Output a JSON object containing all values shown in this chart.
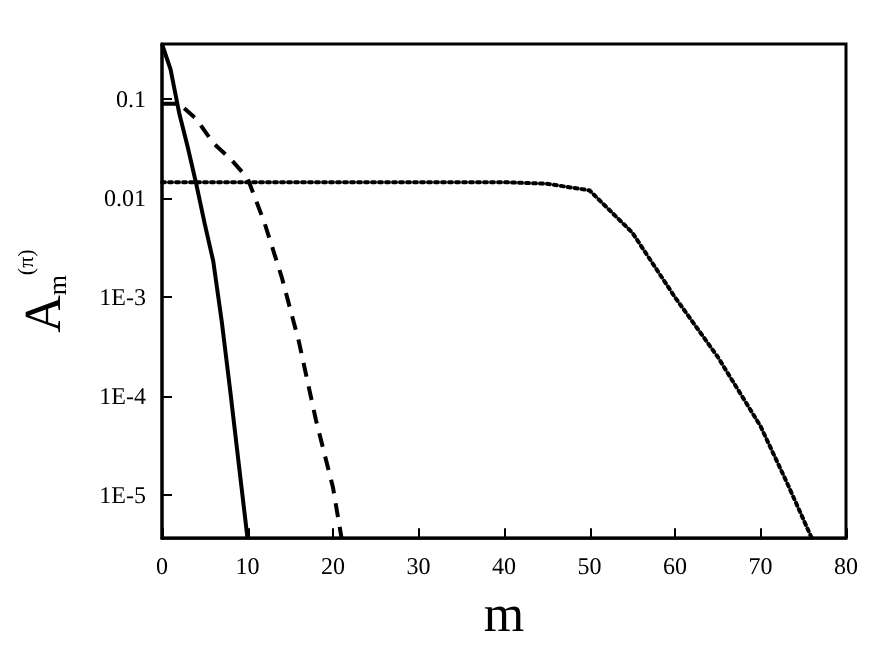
{
  "chart_data": {
    "type": "line",
    "xlabel": "m",
    "ylabel": "A$_{m}$$^{(π)}$",
    "log": "y",
    "grid": false,
    "marker": "none",
    "xlim": [
      0,
      80
    ],
    "xticks": [
      0,
      10,
      20,
      30,
      40,
      50,
      60,
      70,
      80
    ],
    "ylim": [
      3.7e-06,
      0.36
    ],
    "yticks": [
      0.1,
      0.01,
      {
        "value": 0.001,
        "label": "1E-3"
      },
      {
        "value": 0.0001,
        "label": "1E-4"
      },
      {
        "value": 1e-05,
        "label": "1E-5"
      }
    ],
    "series": [
      {
        "color": "#000000",
        "line_style": "solid",
        "x": [
          0,
          1,
          2,
          3,
          4,
          5,
          6,
          7,
          8,
          9,
          10
        ],
        "values": [
          0.36,
          0.2,
          0.073,
          0.033,
          0.014,
          0.0055,
          0.0023,
          0.00056,
          0.00011,
          2e-05,
          3.7e-06
        ]
      },
      {
        "color": "#000000",
        "line_style": "dashed",
        "x": [
          0,
          2,
          4,
          6,
          8,
          10,
          12,
          14,
          16,
          18,
          20,
          21
        ],
        "values": [
          0.09,
          0.09,
          0.063,
          0.036,
          0.025,
          0.016,
          0.0056,
          0.0016,
          0.00036,
          5.8e-05,
          1.2e-05,
          3.7e-06
        ]
      },
      {
        "color": "#000000",
        "line_style": "dotted",
        "x": [
          0,
          10,
          20,
          30,
          40,
          45,
          50,
          55,
          60,
          65,
          70,
          73,
          76
        ],
        "values": [
          0.0145,
          0.0145,
          0.0145,
          0.0145,
          0.0145,
          0.014,
          0.012,
          0.0045,
          0.001,
          0.00025,
          5e-05,
          1.4e-05,
          3.7e-06
        ]
      }
    ]
  }
}
